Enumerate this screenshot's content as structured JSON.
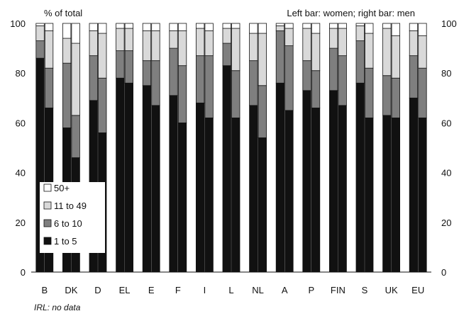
{
  "chart_data": {
    "type": "bar",
    "subtype": "stacked-100-paired",
    "ylabel": "% of total",
    "note_top_right": "Left bar: women; right bar: men",
    "footnote": "IRL: no data",
    "ylim": [
      0,
      100
    ],
    "yticks": [
      0,
      20,
      40,
      60,
      80,
      100
    ],
    "grid": false,
    "legend_position": "bottom-left",
    "categories": [
      "B",
      "DK",
      "D",
      "EL",
      "E",
      "F",
      "I",
      "L",
      "NL",
      "A",
      "P",
      "FIN",
      "S",
      "UK",
      "EU"
    ],
    "pair_labels": [
      "women",
      "men"
    ],
    "series": [
      {
        "name": "1 to 5",
        "color": "#111111",
        "women": [
          86,
          58,
          69,
          78,
          75,
          71,
          68,
          83,
          67,
          76,
          73,
          73,
          76,
          63,
          70
        ],
        "men": [
          66,
          46,
          56,
          76,
          67,
          60,
          62,
          62,
          54,
          65,
          66,
          67,
          62,
          62,
          62
        ]
      },
      {
        "name": "6 to 10",
        "color": "#7f7f7f",
        "women": [
          7,
          26,
          18,
          11,
          10,
          19,
          19,
          9,
          18,
          21,
          12,
          17,
          17,
          16,
          17
        ],
        "men": [
          16,
          17,
          22,
          13,
          18,
          23,
          25,
          19,
          21,
          26,
          15,
          20,
          20,
          16,
          20
        ]
      },
      {
        "name": "11 to 49",
        "color": "#d9d9d9",
        "women": [
          6,
          10,
          10,
          9,
          12,
          7,
          11,
          6,
          11,
          2,
          13,
          8,
          6,
          19,
          10
        ],
        "men": [
          15,
          29,
          18,
          9,
          12,
          14,
          10,
          17,
          21,
          7,
          15,
          11,
          14,
          17,
          13
        ]
      },
      {
        "name": "50+",
        "color": "#ffffff",
        "women": [
          1,
          6,
          3,
          2,
          3,
          3,
          2,
          2,
          4,
          1,
          2,
          2,
          1,
          2,
          3
        ],
        "men": [
          3,
          8,
          4,
          2,
          3,
          3,
          3,
          2,
          4,
          2,
          4,
          2,
          4,
          5,
          5
        ]
      }
    ],
    "legend_order": [
      "50+",
      "11 to 49",
      "6 to 10",
      "1 to 5"
    ]
  }
}
